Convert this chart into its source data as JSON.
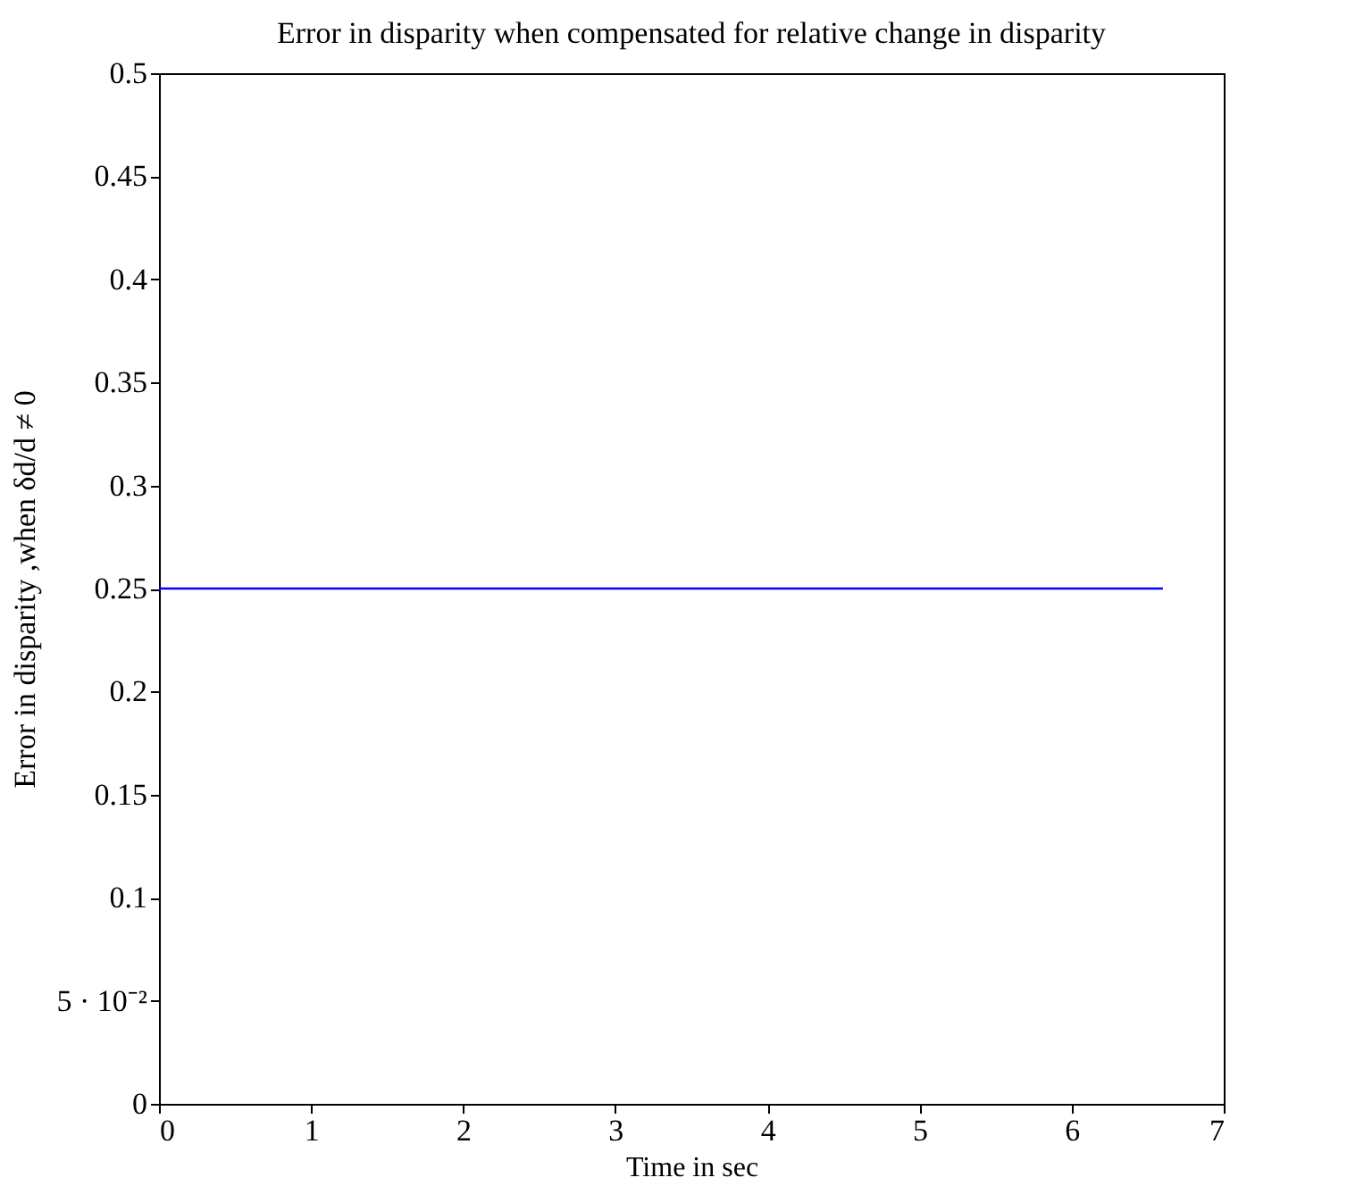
{
  "chart_data": {
    "type": "line",
    "title": "Error in disparity when compensated for relative change in disparity",
    "xlabel": "Time in sec",
    "ylabel": "Error in disparity ,when δd/d ≠ 0",
    "x": [
      0,
      6.6
    ],
    "series": [
      {
        "color": "#0000ff",
        "values": [
          0.25,
          0.25
        ]
      }
    ],
    "xlim": [
      0,
      7
    ],
    "xticks": [
      0,
      1,
      2,
      3,
      4,
      5,
      6,
      7
    ],
    "ylim": [
      0,
      0.5
    ],
    "yticks": [
      0,
      {
        "value": 0.05,
        "label": "5 · 10⁻²"
      },
      0.1,
      0.15,
      0.2,
      0.25,
      0.3,
      0.35,
      0.4,
      0.45,
      0.5
    ],
    "grid": false
  }
}
